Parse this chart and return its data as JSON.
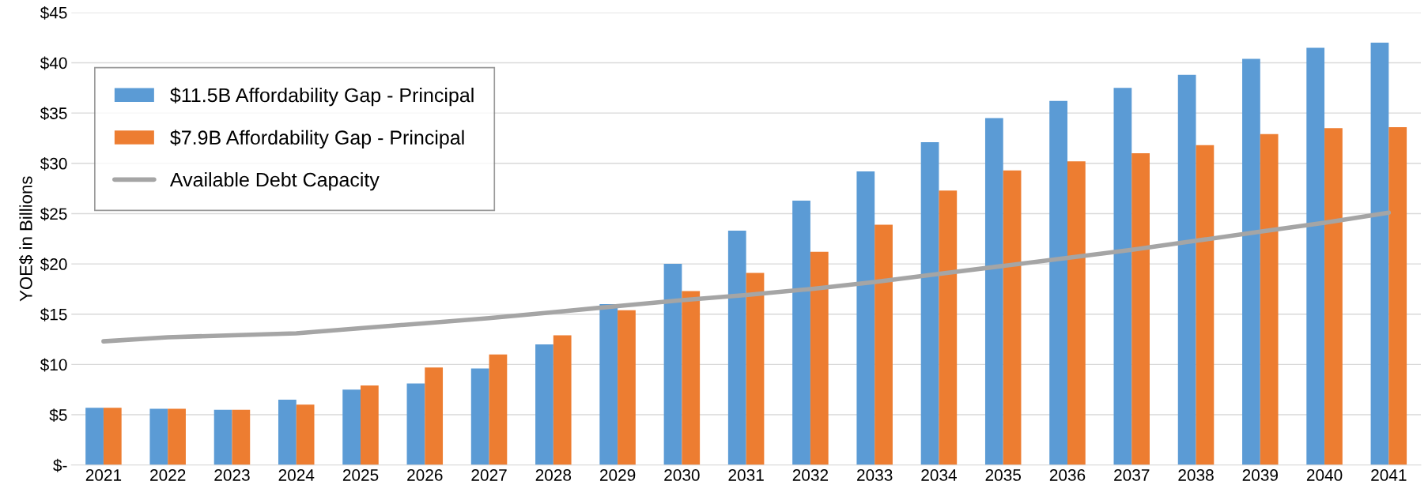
{
  "chart_data": {
    "type": "bar",
    "ylabel": "YOE$ in Billions",
    "categories": [
      "2021",
      "2022",
      "2023",
      "2024",
      "2025",
      "2026",
      "2027",
      "2028",
      "2029",
      "2030",
      "2031",
      "2032",
      "2033",
      "2034",
      "2035",
      "2036",
      "2037",
      "2038",
      "2039",
      "2040",
      "2041"
    ],
    "series": [
      {
        "name": "$11.5B Affordability Gap - Principal",
        "color": "#5b9bd5",
        "values": [
          5.7,
          5.6,
          5.5,
          6.5,
          7.5,
          8.1,
          9.6,
          12.0,
          16.0,
          20.0,
          23.3,
          26.3,
          29.2,
          32.1,
          34.5,
          36.2,
          37.5,
          38.8,
          40.4,
          41.5,
          42.0
        ]
      },
      {
        "name": "$7.9B Affordability Gap - Principal",
        "color": "#ed7d31",
        "values": [
          5.7,
          5.6,
          5.5,
          6.0,
          7.9,
          9.7,
          11.0,
          12.9,
          15.4,
          17.3,
          19.1,
          21.2,
          23.9,
          27.3,
          29.3,
          30.2,
          31.0,
          31.8,
          32.9,
          33.5,
          33.6
        ]
      },
      {
        "name": "Available Debt Capacity",
        "color": "#a5a5a5",
        "type": "line",
        "values": [
          12.3,
          12.7,
          12.9,
          13.1,
          13.6,
          14.1,
          14.6,
          15.2,
          15.8,
          16.4,
          16.9,
          17.5,
          18.2,
          19.0,
          19.8,
          20.6,
          21.4,
          22.3,
          23.2,
          24.1,
          25.1
        ]
      }
    ],
    "ylim": [
      0,
      45
    ],
    "yticks": [
      {
        "value": 0,
        "label": "$-"
      },
      {
        "value": 5,
        "label": "$5"
      },
      {
        "value": 10,
        "label": "$10"
      },
      {
        "value": 15,
        "label": "$15"
      },
      {
        "value": 20,
        "label": "$20"
      },
      {
        "value": 25,
        "label": "$25"
      },
      {
        "value": 30,
        "label": "$30"
      },
      {
        "value": 35,
        "label": "$35"
      },
      {
        "value": 40,
        "label": "$40"
      },
      {
        "value": 45,
        "label": "$45"
      }
    ],
    "grid": "y",
    "legend": "top left"
  }
}
